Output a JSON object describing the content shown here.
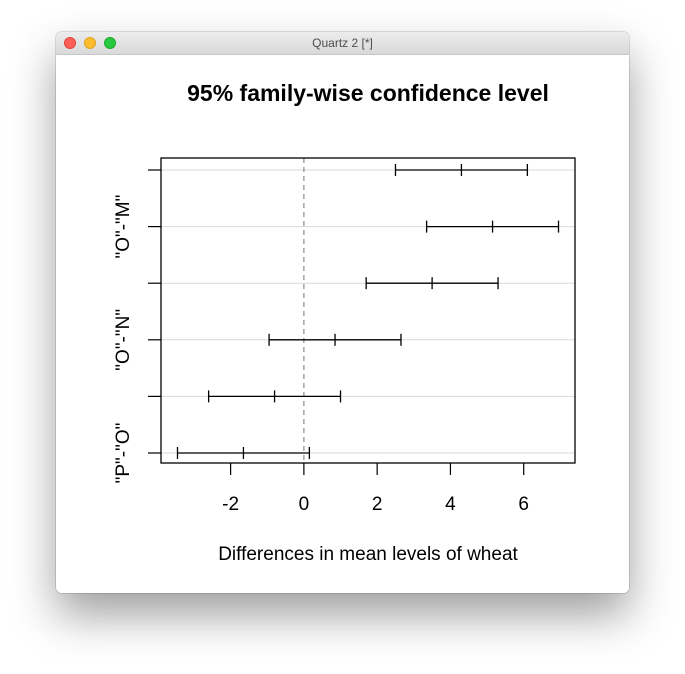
{
  "window": {
    "title": "Quartz 2 [*]"
  },
  "chart_data": {
    "type": "errorbar",
    "title": "95% family-wise confidence level",
    "xlabel": "Differences in mean levels of wheat",
    "ylabel": "",
    "xlim": [
      -3.9,
      7.4
    ],
    "xticks": [
      -2,
      0,
      2,
      4,
      6
    ],
    "reference_line": 0,
    "ytick_labels_shown": [
      "\"O\"-\"M\"",
      "\"O\"-\"N\"",
      "\"P\"-\"O\""
    ],
    "intervals": [
      {
        "label": "",
        "lwr": 2.5,
        "fit": 4.3,
        "upr": 6.1
      },
      {
        "label": "\"O\"-\"M\"",
        "lwr": 3.35,
        "fit": 5.15,
        "upr": 6.95
      },
      {
        "label": "",
        "lwr": 1.7,
        "fit": 3.5,
        "upr": 5.3
      },
      {
        "label": "\"O\"-\"N\"",
        "lwr": -0.95,
        "fit": 0.85,
        "upr": 2.65
      },
      {
        "label": "",
        "lwr": -2.6,
        "fit": -0.8,
        "upr": 1.0
      },
      {
        "label": "\"P\"-\"O\"",
        "lwr": -3.45,
        "fit": -1.65,
        "upr": 0.15
      }
    ],
    "grid": true,
    "colors": {
      "line": "#000000",
      "grid": "#d9d9d9",
      "reference": "#8c8c8c"
    }
  }
}
